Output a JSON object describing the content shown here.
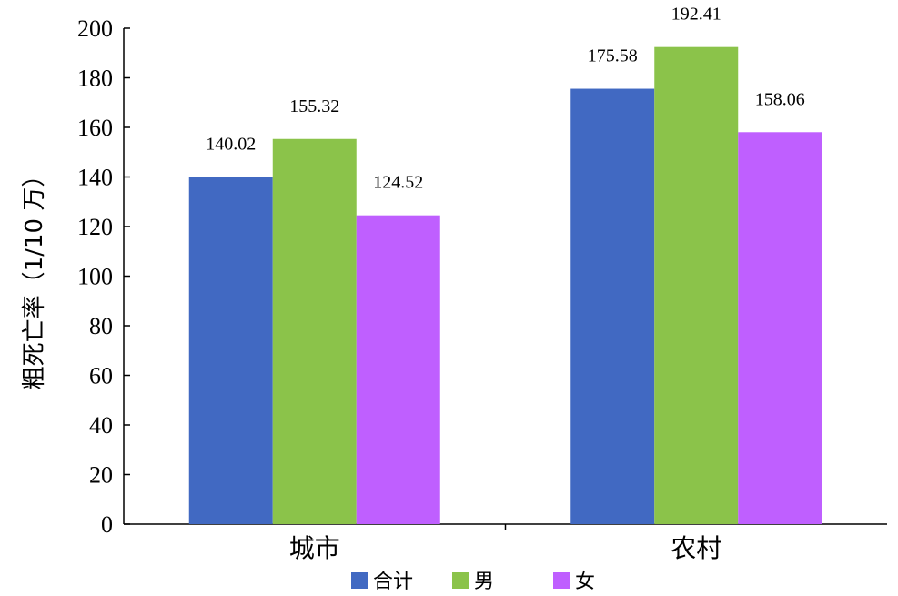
{
  "chart_data": {
    "type": "bar",
    "categories": [
      "城市",
      "农村"
    ],
    "series": [
      {
        "name": "合计",
        "values": [
          140.02,
          175.58
        ],
        "color": "#4169c2"
      },
      {
        "name": "男",
        "values": [
          155.32,
          192.41
        ],
        "color": "#8bc34a"
      },
      {
        "name": "女",
        "values": [
          124.52,
          158.06
        ],
        "color": "#bf5fff"
      }
    ],
    "data_labels": [
      [
        "140.02",
        "175.58"
      ],
      [
        "155.32",
        "192.41"
      ],
      [
        "124.52",
        "158.06"
      ]
    ],
    "title": "",
    "xlabel": "",
    "ylabel": "粗死亡率（1/10 万）",
    "ylim": [
      0,
      200
    ],
    "yticks": [
      "0",
      "20",
      "40",
      "60",
      "80",
      "100",
      "120",
      "140",
      "160",
      "180",
      "200"
    ],
    "grid": false,
    "legend_position": "bottom"
  }
}
